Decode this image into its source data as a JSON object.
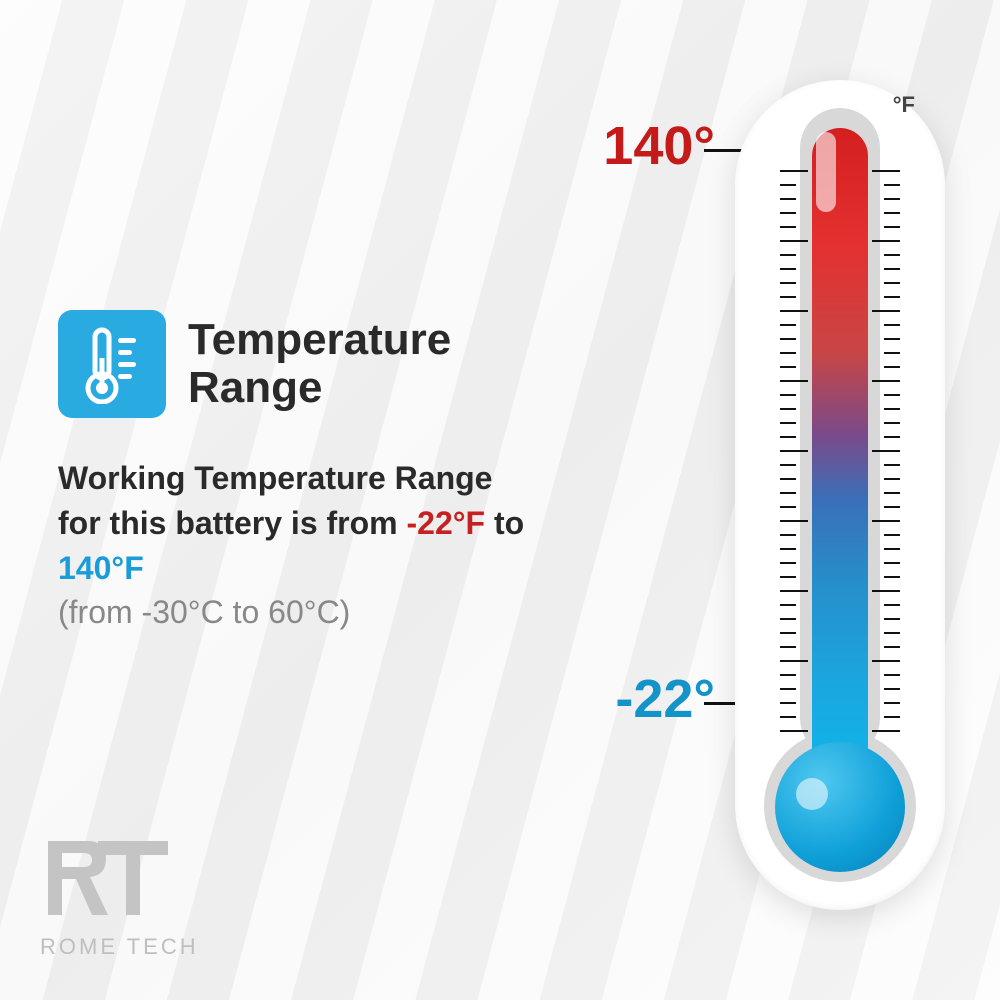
{
  "title": "Temperature\nRange",
  "description": {
    "prefix": "Working Temperature Range for this battery is from ",
    "low_f": "-22°F",
    "mid": " to ",
    "high_f": "140°F",
    "celsius": "(from -30°C to 60°C)"
  },
  "thermometer": {
    "unit": "°F",
    "high_label": "140°",
    "low_label": "-22°",
    "colors": {
      "high": "#c41a1a",
      "low": "#1493c9",
      "gradient_top": "#d41f1f",
      "gradient_bottom": "#0fb4e8",
      "body": "#ffffff",
      "inner_gray": "#d8d8d8"
    },
    "tick_count": 40,
    "major_every": 5
  },
  "icon": {
    "bg_color": "#29abe2"
  },
  "logo": {
    "mark": "RT",
    "text": "ROME TECH"
  }
}
